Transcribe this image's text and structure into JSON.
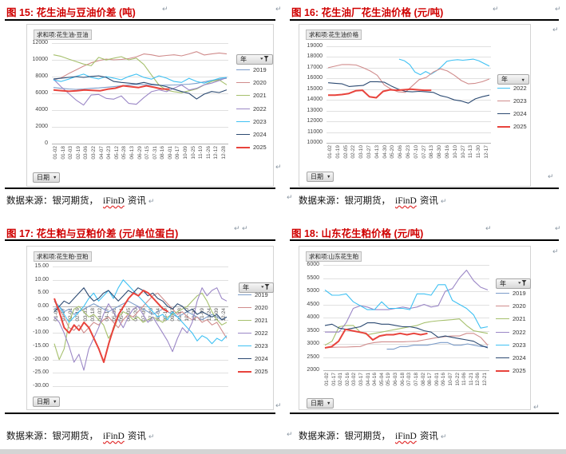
{
  "page": {
    "pilcrow": "↵",
    "title_color": "#d00000",
    "source": {
      "prefix": "数据来源：银河期货，",
      "spellcheck_word": "iFinD",
      "suffix": "资讯"
    }
  },
  "figures": [
    {
      "label": "图 15: 花生油与豆油价差 (吨)"
    },
    {
      "label": "图 16: 花生油厂花生油价格 (元/吨)"
    },
    {
      "label": "图 17: 花生粕与豆粕价差 (元/单位蛋白)"
    },
    {
      "label": "图 18: 山东花生粕价格 (元/吨)"
    }
  ],
  "chart_data": [
    {
      "type": "line",
      "title": "花生油与豆油价差 (吨)",
      "pivot_value_label": "求和项:花生油-豆油",
      "legend_field": "年",
      "row_field": "日期",
      "legend_filtered": true,
      "ylim": [
        0,
        12000
      ],
      "y_step": 2000,
      "y_decimals": 0,
      "x_axis_at_zero": false,
      "x_labels": [
        "01-02",
        "01-18",
        "02-03",
        "02-19",
        "03-06",
        "03-22",
        "04-07",
        "04-23",
        "05-12",
        "05-28",
        "06-13",
        "06-29",
        "07-15",
        "07-31",
        "08-16",
        "09-01",
        "09-17",
        "10-09",
        "10-25",
        "11-10",
        "11-26",
        "12-12",
        "12-28"
      ],
      "series": [
        {
          "name": "2019",
          "color": "#7b9cc9",
          "values": [
            6700,
            6600,
            6520,
            6480,
            6520,
            6600,
            6650,
            6720,
            6800,
            6900,
            7000,
            7080,
            7050,
            7000,
            6950,
            6980,
            7000,
            7050,
            7100,
            7200,
            7380,
            7550,
            7680,
            7800
          ]
        },
        {
          "name": "2020",
          "color": "#d08c8c",
          "values": [
            7600,
            7850,
            8350,
            8800,
            9250,
            9650,
            9900,
            10100,
            10000,
            10050,
            10150,
            10350,
            10700,
            10600,
            10420,
            10520,
            10600,
            10480,
            10700,
            10980,
            10580,
            10700,
            10820,
            10700
          ]
        },
        {
          "name": "2021",
          "color": "#a6c06d",
          "values": [
            10600,
            10420,
            10100,
            9800,
            9500,
            9300,
            10300,
            9980,
            10200,
            10380,
            10000,
            10200,
            9450,
            8200,
            7000,
            6380,
            6200,
            6080,
            6300,
            6520,
            7000,
            7420,
            7600,
            7020
          ]
        },
        {
          "name": "2022",
          "color": "#9b87c6",
          "values": [
            7700,
            6800,
            6000,
            5200,
            4600,
            5800,
            5880,
            5400,
            5300,
            5700,
            4800,
            4700,
            5500,
            6200,
            6420,
            6200,
            6620,
            7000,
            6400,
            6600,
            7020,
            7220,
            7520,
            7880
          ]
        },
        {
          "name": "2023",
          "color": "#3fc1f3",
          "values": [
            7600,
            7420,
            7700,
            8020,
            8300,
            7900,
            7720,
            8000,
            7820,
            7620,
            8020,
            8300,
            7900,
            7700,
            8100,
            7820,
            7420,
            7300,
            7800,
            7420,
            7220,
            7520,
            7800,
            7900
          ]
        },
        {
          "name": "2024",
          "color": "#2c4a72",
          "values": [
            7720,
            7800,
            7900,
            8000,
            7900,
            8020,
            8100,
            7900,
            7420,
            7300,
            7220,
            7120,
            7300,
            7100,
            7000,
            6800,
            6500,
            6220,
            6000,
            5320,
            5900,
            6220,
            6100,
            6420
          ]
        },
        {
          "name": "2025",
          "color": "#e8433c",
          "thick": true,
          "span": [
            0,
            0.67
          ],
          "values": [
            6400,
            6320,
            6250,
            6300,
            6400,
            6350,
            6300,
            6500,
            6620,
            6900,
            6800,
            6700,
            6900,
            6720,
            6520,
            6500
          ]
        }
      ]
    },
    {
      "type": "line",
      "title": "花生油厂花生油价格 (元/吨)",
      "pivot_value_label": "求和项:花生油价格",
      "legend_field": "年",
      "row_field": "日期",
      "legend_filtered": false,
      "ylim": [
        10000,
        19000
      ],
      "y_step": 1000,
      "y_decimals": 0,
      "x_axis_at_zero": false,
      "x_labels": [
        "01-02",
        "01-19",
        "02-05",
        "02-22",
        "03-10",
        "03-27",
        "04-13",
        "04-30",
        "05-20",
        "06-06",
        "06-23",
        "07-10",
        "07-27",
        "08-13",
        "08-30",
        "09-16",
        "10-10",
        "10-27",
        "11-13",
        "11-30",
        "12-17"
      ],
      "series": [
        {
          "name": "2022",
          "color": "#3fc1f3",
          "span": [
            0.44,
            1
          ],
          "values": [
            17800,
            17650,
            17300,
            16600,
            16350,
            16650,
            16400,
            16700,
            17100,
            17600,
            17700,
            17750,
            17700,
            17750,
            17800,
            17650,
            17400,
            17150
          ]
        },
        {
          "name": "2023",
          "color": "#d08c8c",
          "values": [
            17000,
            17150,
            17300,
            17300,
            17250,
            17000,
            16700,
            16300,
            15400,
            15000,
            14750,
            14700,
            15300,
            15900,
            16100,
            16600,
            16900,
            16700,
            16300,
            15800,
            15500,
            15550,
            15700,
            15950
          ]
        },
        {
          "name": "2024",
          "color": "#2c4a72",
          "values": [
            15600,
            15550,
            15500,
            15250,
            15300,
            15350,
            15700,
            15700,
            15650,
            15300,
            15000,
            14800,
            14750,
            14800,
            14750,
            14700,
            14400,
            14250,
            14000,
            13900,
            13700,
            14100,
            14300,
            14450
          ]
        },
        {
          "name": "2025",
          "color": "#e8433c",
          "thick": true,
          "span": [
            0,
            0.64
          ],
          "values": [
            14450,
            14450,
            14500,
            14600,
            14850,
            14900,
            14300,
            14200,
            14800,
            14950,
            14900,
            14950,
            15000,
            14950,
            14900,
            14900
          ]
        }
      ]
    },
    {
      "type": "line",
      "title": "花生粕与豆粕价差 (元/单位蛋白)",
      "pivot_value_label": "求和项:花生粕-豆粕",
      "legend_field": "年",
      "row_field": "日期",
      "legend_filtered": true,
      "ylim": [
        -30,
        15
      ],
      "y_step": 5,
      "y_decimals": 2,
      "x_axis_at_zero": true,
      "x_labels": [
        "01-02",
        "01-17",
        "02-01",
        "02-16",
        "03-03",
        "03-18",
        "04-02",
        "04-17",
        "05-06",
        "05-21",
        "06-05",
        "06-20",
        "07-05",
        "07-20",
        "08-04",
        "08-19",
        "09-03",
        "09-18",
        "10-10",
        "10-25",
        "11-09",
        "11-24",
        "12-09",
        "12-24"
      ],
      "series": [
        {
          "name": "2019",
          "color": "#7b9cc9",
          "values": [
            -1,
            0,
            -2,
            -1,
            -3,
            -2,
            -1,
            0,
            1,
            0,
            -1,
            -2,
            -1,
            0,
            1,
            2,
            1,
            0,
            -1,
            -2,
            -3,
            -2,
            -1,
            -2,
            -3,
            -4,
            -3,
            -2,
            -3,
            -4,
            -5,
            -4,
            -3,
            -4,
            -5,
            -4
          ]
        },
        {
          "name": "2020",
          "color": "#d08c8c",
          "values": [
            2,
            -1,
            -4,
            -8,
            -9,
            -7,
            -10,
            -8,
            -6,
            -7,
            -5,
            -4,
            -6,
            -8,
            -5,
            -3,
            -4,
            -2,
            0,
            2,
            4,
            5,
            3,
            1,
            -1,
            -3,
            -2,
            -4,
            -5,
            -4,
            -6,
            -5,
            -7,
            -6,
            -9,
            -12
          ]
        },
        {
          "name": "2021",
          "color": "#a6c06d",
          "values": [
            -14,
            -20,
            -16,
            -6,
            -1,
            0,
            -2,
            -4,
            -3,
            -5,
            -7,
            -12,
            -9,
            -4,
            -2,
            -3,
            -5,
            -4,
            -6,
            -5,
            -4,
            -5,
            -6,
            -4,
            -3,
            -2,
            -1,
            0,
            2,
            4,
            5,
            2,
            -2,
            -5,
            -7,
            -6
          ]
        },
        {
          "name": "2022",
          "color": "#9b87c6",
          "values": [
            -4,
            -6,
            -10,
            -15,
            -21,
            -18,
            -24,
            -16,
            -12,
            -8,
            -3,
            1,
            -2,
            -5,
            -8,
            -4,
            -1,
            0,
            -3,
            -6,
            -4,
            -7,
            -10,
            -13,
            -17,
            -12,
            -8,
            -10,
            -6,
            2,
            7,
            4,
            6,
            7,
            3,
            2
          ]
        },
        {
          "name": "2023",
          "color": "#3fc1f3",
          "values": [
            2,
            0,
            -3,
            -6,
            -4,
            -2,
            0,
            3,
            5,
            2,
            4,
            6,
            3,
            7,
            10,
            8,
            6,
            4,
            2,
            0,
            -2,
            -4,
            -3,
            -5,
            -2,
            -4,
            -6,
            -8,
            -10,
            -13,
            -11,
            -12,
            -14,
            -12,
            -13,
            -11
          ]
        },
        {
          "name": "2024",
          "color": "#2c4a72",
          "values": [
            -2,
            0,
            2,
            1,
            3,
            5,
            7,
            4,
            2,
            3,
            5,
            6,
            4,
            2,
            4,
            6,
            5,
            7,
            6,
            4,
            5,
            3,
            2,
            0,
            -1,
            1,
            0,
            -2,
            -1,
            -3,
            -2,
            -3,
            -4,
            -3,
            -5,
            -4
          ]
        },
        {
          "name": "2025",
          "color": "#e8433c",
          "thick": true,
          "span": [
            0,
            0.66
          ],
          "values": [
            3,
            -2,
            -8,
            -10,
            -7,
            -9,
            -6,
            -8,
            -12,
            -16,
            -21,
            -14,
            -8,
            -3,
            0,
            3,
            5,
            4,
            6,
            5,
            3,
            1,
            -1,
            -2
          ]
        }
      ]
    },
    {
      "type": "line",
      "title": "山东花生粕价格 (元/吨)",
      "pivot_value_label": "求和项:山东花生粕",
      "legend_field": "年",
      "row_field": "日期",
      "legend_filtered": true,
      "ylim": [
        2000,
        6000
      ],
      "y_step": 500,
      "y_decimals": 0,
      "x_axis_at_zero": false,
      "x_labels": [
        "01-02",
        "01-17",
        "02-01",
        "02-16",
        "03-02",
        "03-17",
        "04-01",
        "04-16",
        "05-04",
        "05-19",
        "06-03",
        "06-18",
        "07-03",
        "07-18",
        "08-02",
        "08-17",
        "09-01",
        "09-16",
        "10-07",
        "10-22",
        "11-06",
        "11-21",
        "12-06",
        "12-21"
      ],
      "series": [
        {
          "name": "2019",
          "color": "#7b9cc9",
          "span": [
            0.38,
            1
          ],
          "values": [
            2800,
            2800,
            2900,
            2900,
            2950,
            2950,
            2950,
            3000,
            3050,
            3050,
            2950,
            2950,
            3000,
            2950,
            2900,
            2900
          ]
        },
        {
          "name": "2020",
          "color": "#d08c8c",
          "values": [
            2850,
            2870,
            2880,
            2880,
            2890,
            2900,
            3000,
            3050,
            3080,
            3080,
            3080,
            3080,
            3090,
            3100,
            3150,
            3200,
            3250,
            3280,
            3300,
            3300,
            3400,
            3400,
            3250,
            2950
          ]
        },
        {
          "name": "2021",
          "color": "#a6c06d",
          "values": [
            2950,
            3100,
            3650,
            3700,
            3700,
            3450,
            3350,
            3400,
            3450,
            3500,
            3550,
            3600,
            3650,
            3700,
            3800,
            3850,
            3880,
            3900,
            3920,
            3950,
            3700,
            3500,
            3450,
            3400
          ]
        },
        {
          "name": "2022",
          "color": "#9b87c6",
          "values": [
            3450,
            3450,
            3450,
            3800,
            4350,
            4450,
            4400,
            4300,
            4300,
            4300,
            4350,
            4400,
            4350,
            4400,
            4500,
            4400,
            4450,
            5000,
            5100,
            5500,
            5800,
            5400,
            5150,
            5050
          ]
        },
        {
          "name": "2023",
          "color": "#3fc1f3",
          "values": [
            5050,
            4850,
            4850,
            4900,
            4600,
            4450,
            4300,
            4300,
            4600,
            4350,
            4350,
            4350,
            4300,
            4900,
            4900,
            4850,
            5250,
            5250,
            4650,
            4500,
            4350,
            4100,
            3600,
            3650
          ]
        },
        {
          "name": "2024",
          "color": "#2c4a72",
          "values": [
            3700,
            3750,
            3600,
            3550,
            3600,
            3650,
            3800,
            3800,
            3750,
            3750,
            3700,
            3650,
            3650,
            3600,
            3500,
            3450,
            3250,
            3300,
            3250,
            3200,
            3150,
            3100,
            2950,
            2850
          ]
        },
        {
          "name": "2025",
          "color": "#e8433c",
          "thick": true,
          "span": [
            0,
            0.63
          ],
          "values": [
            2850,
            2900,
            3100,
            3550,
            3500,
            3450,
            3400,
            3150,
            3300,
            3350,
            3350,
            3400,
            3350,
            3400,
            3350,
            3400
          ]
        }
      ]
    }
  ]
}
